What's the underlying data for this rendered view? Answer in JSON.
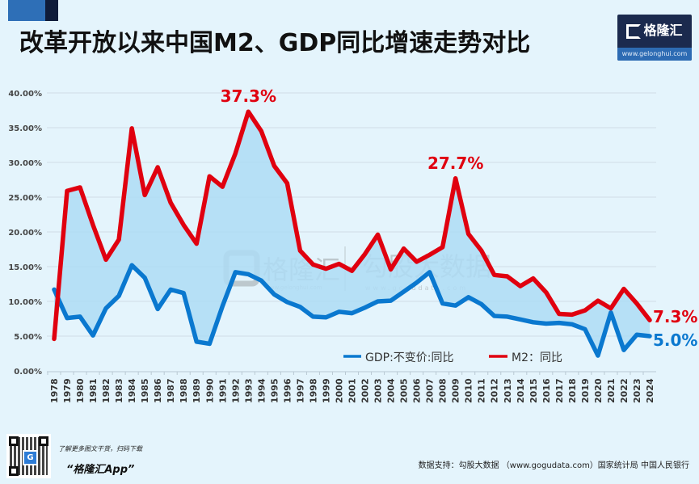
{
  "header": {
    "title": "改革开放以来中国M2、GDP同比增速走势对比",
    "logo_name": "格隆汇",
    "logo_url": "www.gelonghui.com"
  },
  "watermark": {
    "brand1": "格隆汇",
    "brand1_url": "www.gelonghui.com",
    "brand2": "勾股大数据",
    "brand2_url": "www.gogudata.com"
  },
  "footer": {
    "qr_logo": "G",
    "tagline": "了解更多图文干货，扫码下载",
    "app_name": "“格隆汇App”",
    "source": "数据支持：勾股大数据 （www.gogudata.com）国家统计局 中国人民银行"
  },
  "colors": {
    "m2": "#e0000f",
    "gdp": "#0a78cf",
    "fill": "#aedcf5",
    "background": "#e4f4fc",
    "grid": "#cfdde6"
  },
  "chart_data": {
    "type": "line",
    "title": "改革开放以来中国M2、GDP同比增速走势对比",
    "xlabel": "",
    "ylabel": "",
    "ylim": [
      0,
      40
    ],
    "yticks": [
      "0.00%",
      "5.00%",
      "10.00%",
      "15.00%",
      "20.00%",
      "25.00%",
      "30.00%",
      "35.00%",
      "40.00%"
    ],
    "grid": true,
    "legend_position": "bottom-right",
    "x": [
      "1978",
      "1979",
      "1980",
      "1981",
      "1982",
      "1983",
      "1984",
      "1985",
      "1986",
      "1987",
      "1988",
      "1989",
      "1990",
      "1991",
      "1992",
      "1993",
      "1994",
      "1995",
      "1996",
      "1997",
      "1998",
      "1999",
      "2000",
      "2001",
      "2002",
      "2003",
      "2004",
      "2005",
      "2006",
      "2007",
      "2008",
      "2009",
      "2010",
      "2011",
      "2012",
      "2013",
      "2014",
      "2015",
      "2016",
      "2017",
      "2018",
      "2019",
      "2020",
      "2021",
      "2022",
      "2023",
      "2024"
    ],
    "series": [
      {
        "name": "GDP:不变价:同比",
        "key": "gdp",
        "values": [
          11.7,
          7.6,
          7.8,
          5.1,
          9.0,
          10.8,
          15.2,
          13.4,
          8.9,
          11.7,
          11.2,
          4.2,
          3.9,
          9.3,
          14.2,
          13.9,
          13.0,
          11.0,
          9.9,
          9.2,
          7.8,
          7.7,
          8.5,
          8.3,
          9.1,
          10.0,
          10.1,
          11.4,
          12.7,
          14.2,
          9.7,
          9.4,
          10.6,
          9.6,
          7.9,
          7.8,
          7.4,
          7.0,
          6.8,
          6.9,
          6.7,
          6.0,
          2.2,
          8.4,
          3.0,
          5.2,
          5.0
        ]
      },
      {
        "name": "M2：同比",
        "key": "m2",
        "values": [
          4.6,
          25.9,
          26.4,
          21.0,
          16.0,
          18.9,
          34.9,
          25.3,
          29.3,
          24.2,
          21.0,
          18.3,
          28.0,
          26.5,
          31.3,
          37.3,
          34.5,
          29.5,
          27.0,
          17.3,
          15.3,
          14.7,
          15.4,
          14.4,
          16.8,
          19.6,
          14.6,
          17.6,
          15.7,
          16.7,
          17.8,
          27.7,
          19.7,
          17.3,
          13.8,
          13.6,
          12.2,
          13.3,
          11.3,
          8.2,
          8.1,
          8.7,
          10.1,
          9.0,
          11.8,
          9.7,
          7.3
        ]
      }
    ],
    "annotations": [
      {
        "series": "m2",
        "x": "1993",
        "text": "37.3%"
      },
      {
        "series": "m2",
        "x": "2009",
        "text": "27.7%"
      },
      {
        "series": "m2",
        "x": "2024",
        "text": "7.3%"
      },
      {
        "series": "gdp",
        "x": "2024",
        "text": "5.0%"
      }
    ]
  }
}
